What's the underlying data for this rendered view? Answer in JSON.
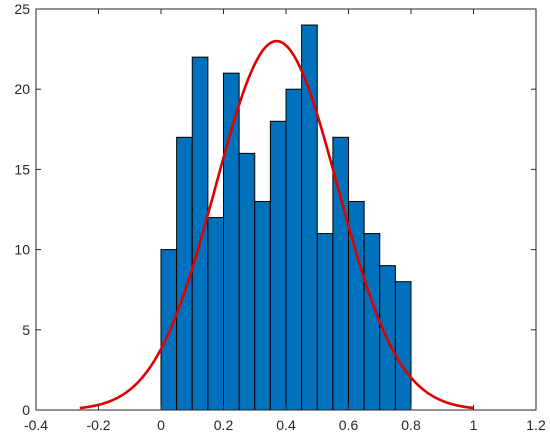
{
  "chart_data": {
    "type": "bar",
    "title": "",
    "xlabel": "",
    "ylabel": "",
    "xlim": [
      -0.4,
      1.2
    ],
    "ylim": [
      0,
      25
    ],
    "x_ticks": [
      -0.4,
      -0.2,
      0,
      0.2,
      0.4,
      0.6,
      0.8,
      1,
      1.2
    ],
    "x_tick_labels": [
      "-0.4",
      "-0.2",
      "0",
      "0.2",
      "0.4",
      "0.6",
      "0.8",
      "1",
      "1.2"
    ],
    "y_ticks": [
      0,
      5,
      10,
      15,
      20,
      25
    ],
    "y_tick_labels": [
      "0",
      "5",
      "10",
      "15",
      "20",
      "25"
    ],
    "grid": false,
    "bin_edges": [
      0,
      0.05,
      0.1,
      0.15,
      0.2,
      0.25,
      0.3,
      0.35,
      0.4,
      0.45,
      0.5,
      0.55,
      0.6,
      0.65,
      0.7,
      0.75,
      0.8
    ],
    "values": [
      10,
      17,
      22,
      12,
      21,
      16,
      13,
      18,
      20,
      24,
      11,
      17,
      13,
      11,
      9,
      8
    ],
    "bar_color": "#0072BD",
    "fit_curve": {
      "type": "normal",
      "x_range": [
        -0.26,
        1.0
      ],
      "mean": 0.37,
      "sigma": 0.195,
      "peak": 23,
      "color": "#E00000"
    }
  }
}
